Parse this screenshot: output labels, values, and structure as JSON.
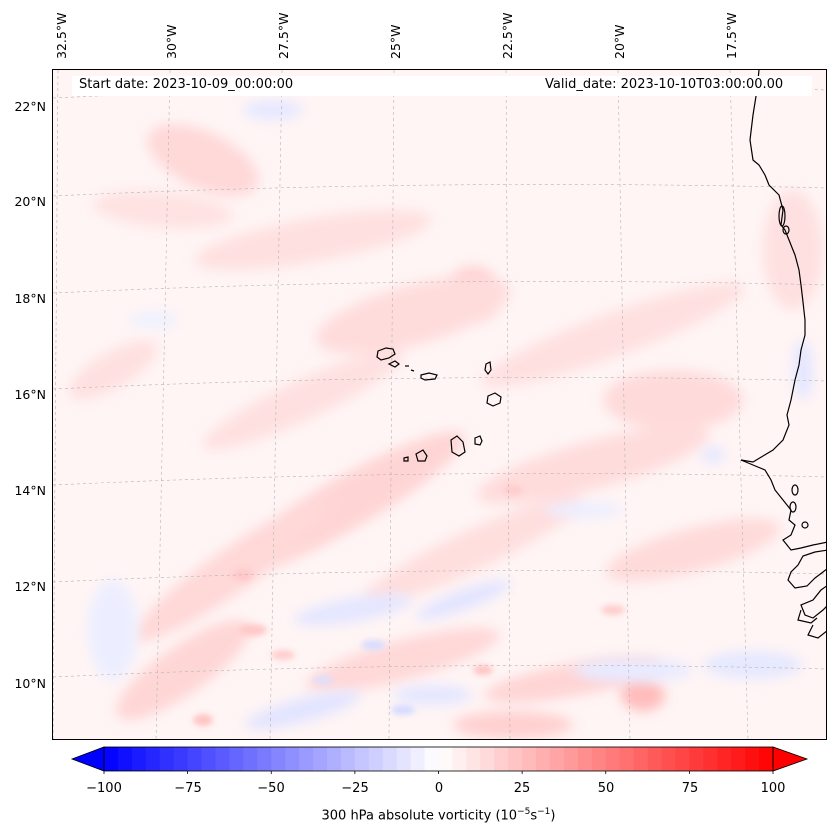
{
  "header": {
    "start_date": "Start date: 2023-10-09_00:00:00",
    "valid_date": "Valid_date: 2023-10-10T03:00:00.00"
  },
  "map": {
    "projection": "lambert-conformal",
    "lon_labels": [
      "32.5°W",
      "30°W",
      "27.5°W",
      "25°W",
      "22.5°W",
      "20°W",
      "17.5°W"
    ],
    "lat_labels": [
      "22°N",
      "20°N",
      "18°N",
      "16°N",
      "14°N",
      "12°N",
      "10°N"
    ],
    "gridlines": "dashed-gray",
    "coastlines": "black",
    "features": [
      "Cape Verde islands",
      "West African coast (Senegal, Gambia, Guinea-Bissau)"
    ]
  },
  "colorbar": {
    "colormap": "bwr",
    "range": [
      -100,
      100
    ],
    "extend": "both",
    "ticks": [
      "−100",
      "−75",
      "−50",
      "−25",
      "0",
      "25",
      "50",
      "75",
      "100"
    ],
    "label_main": "300 hPa absolute vorticity (10",
    "label_exp1": "−5",
    "label_mid": "s",
    "label_exp2": "−1",
    "label_end": ")"
  },
  "colors": {
    "negative": "#0000ff",
    "neutral": "#ffffff",
    "positive": "#ff0000",
    "coast": "#000000",
    "grid": "#bbbbbb"
  }
}
